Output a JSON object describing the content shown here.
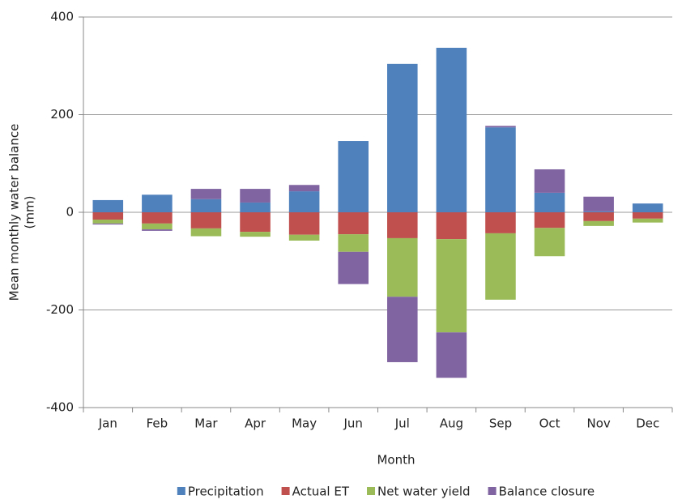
{
  "chart_data": {
    "type": "stacked_bar",
    "xlabel": "Month",
    "ylabel": [
      "Mean monthly water balance",
      "(mm)"
    ],
    "categories": [
      "Jan",
      "Feb",
      "Mar",
      "Apr",
      "May",
      "Jun",
      "Jul",
      "Aug",
      "Sep",
      "Oct",
      "Nov",
      "Dec"
    ],
    "series": [
      {
        "name": "Precipitation",
        "color": "#4f81bd",
        "values": [
          25,
          36,
          27,
          20,
          43,
          146,
          304,
          337,
          174,
          40,
          2,
          18
        ]
      },
      {
        "name": "Actual ET",
        "color": "#c0504d",
        "values": [
          -15,
          -23,
          -33,
          -40,
          -46,
          -45,
          -53,
          -55,
          -43,
          -32,
          -18,
          -13
        ]
      },
      {
        "name": "Net water yield",
        "color": "#9bbb59",
        "values": [
          -8,
          -12,
          -16,
          -10,
          -12,
          -36,
          -120,
          -191,
          -136,
          -58,
          -10,
          -8
        ]
      },
      {
        "name": "Balance closure",
        "color": "#8064a2",
        "values": [
          -2,
          -3,
          21,
          28,
          13,
          -66,
          -134,
          -93,
          3,
          48,
          30,
          0
        ]
      }
    ],
    "ylim": [
      -400,
      400
    ],
    "yticks": [
      400,
      200,
      0,
      -200,
      -400
    ],
    "grid": true
  }
}
